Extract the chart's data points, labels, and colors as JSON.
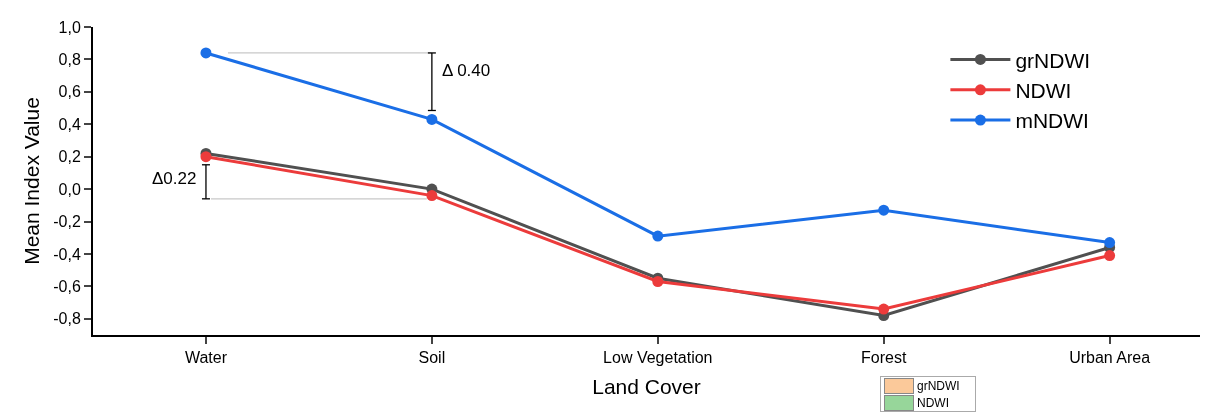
{
  "chart_data": {
    "type": "line",
    "xlabel": "Land Cover",
    "ylabel": "Mean Index Value",
    "categories": [
      "Water",
      "Soil",
      "Low Vegetation",
      "Forest",
      "Urban Area"
    ],
    "series": [
      {
        "name": "grNDWI",
        "color": "#505050",
        "values": [
          0.22,
          0.0,
          -0.55,
          -0.78,
          -0.36
        ]
      },
      {
        "name": "NDWI",
        "color": "#ec3b3b",
        "values": [
          0.2,
          -0.04,
          -0.57,
          -0.74,
          -0.41
        ]
      },
      {
        "name": "mNDWI",
        "color": "#1a6ee6",
        "values": [
          0.84,
          0.43,
          -0.29,
          -0.13,
          -0.33
        ]
      }
    ],
    "ylim": [
      -0.9,
      1.0
    ],
    "yticks": [
      {
        "value": -0.8,
        "label": "-0,8"
      },
      {
        "value": -0.6,
        "label": "-0,6"
      },
      {
        "value": -0.4,
        "label": "-0,4"
      },
      {
        "value": -0.2,
        "label": "-0,2"
      },
      {
        "value": 0,
        "label": "0,0"
      },
      {
        "value": 0.2,
        "label": "0,2"
      },
      {
        "value": 0.4,
        "label": "0,4"
      },
      {
        "value": 0.6,
        "label": "0,6"
      },
      {
        "value": 0.8,
        "label": "0,8"
      },
      {
        "value": 1.0,
        "label": "1,0"
      }
    ],
    "grid": false,
    "legend": "top right",
    "marker": "circle",
    "line_style": "solid",
    "annotations": [
      {
        "text": "Δ 0.40",
        "x": "Soil",
        "y": 0.43
      },
      {
        "text": "Δ0.22",
        "x": "Water",
        "y": 0.2
      },
      "grNDWI",
      "NDWI"
    ]
  }
}
